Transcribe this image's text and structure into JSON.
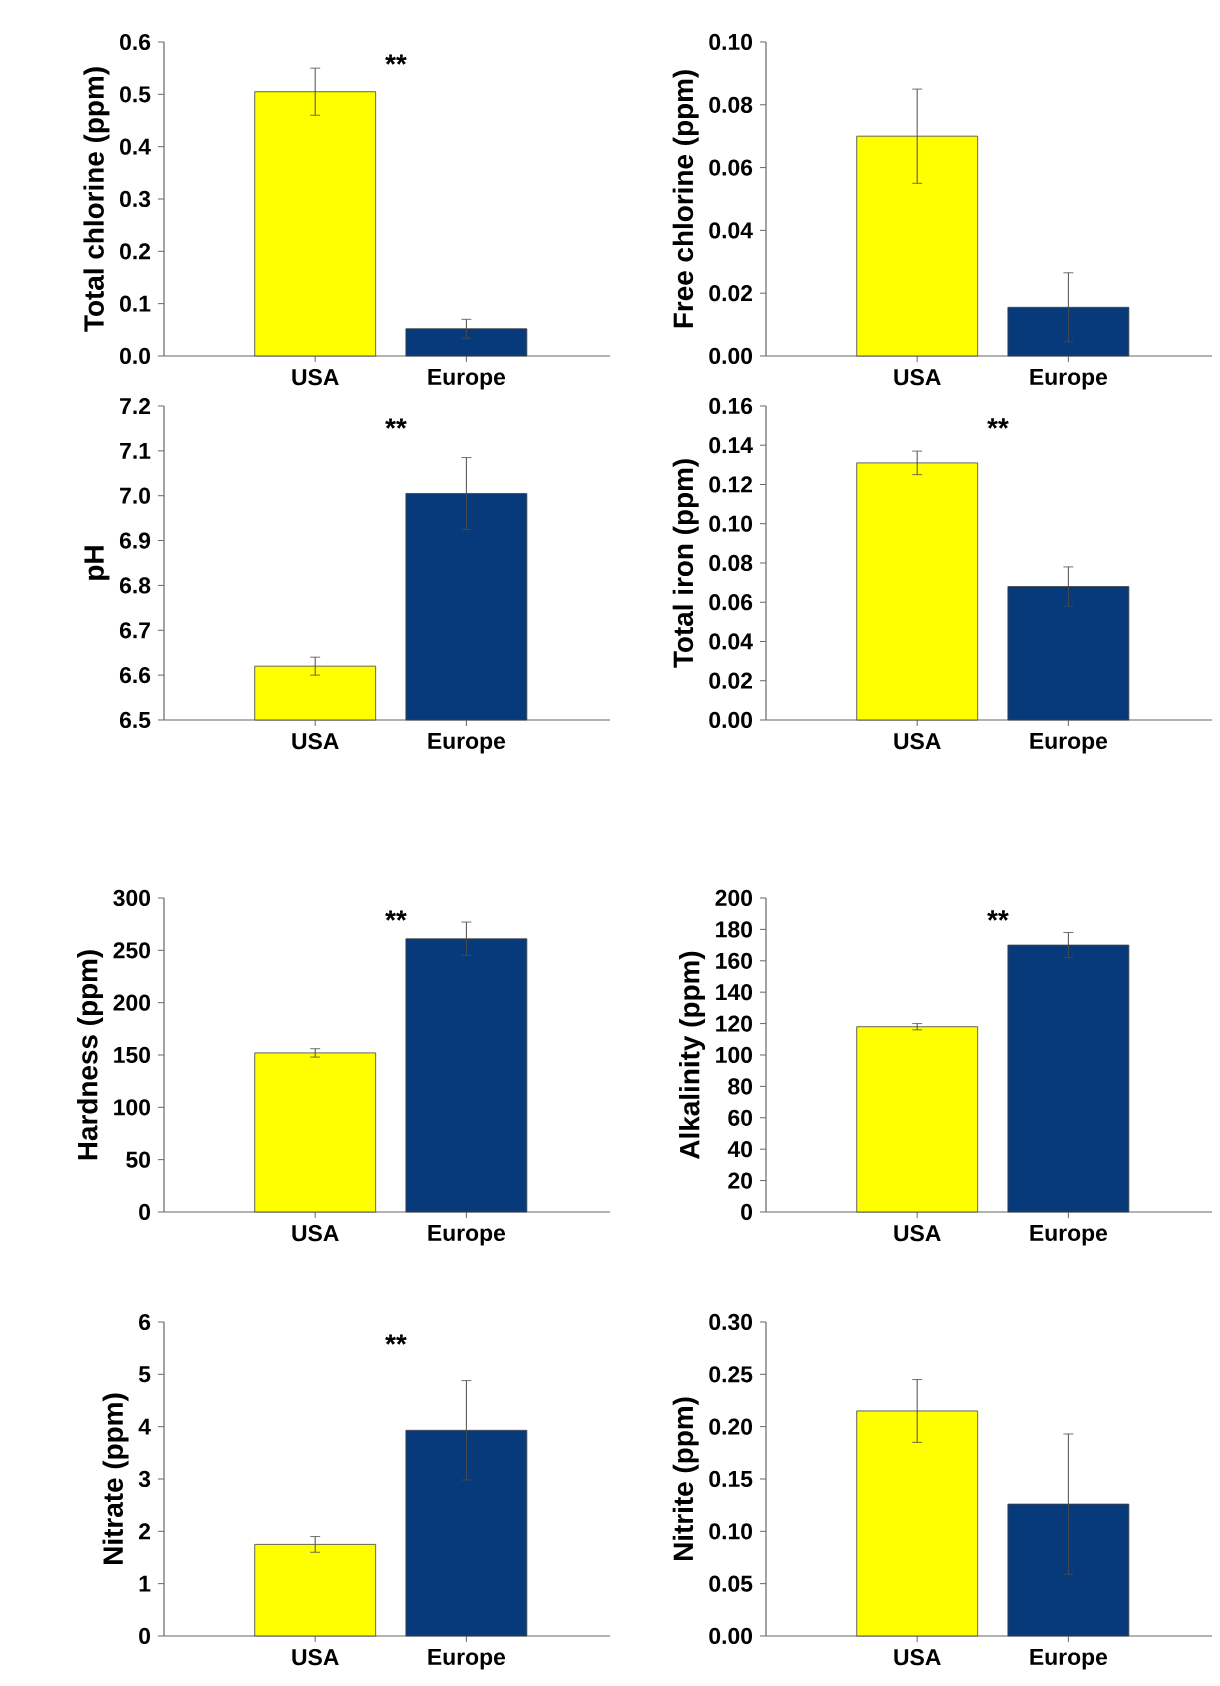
{
  "chart_data": [
    {
      "type": "bar",
      "ylabel": "Total chlorine (ppm)",
      "categories": [
        "USA",
        "Europe"
      ],
      "values": [
        0.505,
        0.052
      ],
      "colors": [
        "#ffff00",
        "#063a7a"
      ],
      "errors": [
        0.045,
        0.018
      ],
      "ylim": [
        0,
        0.6
      ],
      "yticks": [
        {
          "value": 0,
          "label": "0.0"
        },
        0.1,
        0.2,
        0.3,
        0.4,
        0.5,
        0.6
      ],
      "annotations": [
        "**"
      ]
    },
    {
      "type": "bar",
      "ylabel": "Free chlorine (ppm)",
      "categories": [
        "USA",
        "Europe"
      ],
      "values": [
        0.07,
        0.0155
      ],
      "colors": [
        "#ffff00",
        "#063a7a"
      ],
      "errors": [
        0.015,
        0.011
      ],
      "ylim": [
        0,
        0.1
      ],
      "yticks": [
        {
          "value": 0,
          "label": "0.00"
        },
        {
          "value": 0.02,
          "label": "0.02"
        },
        {
          "value": 0.04,
          "label": "0.04"
        },
        {
          "value": 0.06,
          "label": "0.06"
        },
        {
          "value": 0.08,
          "label": "0.08"
        },
        {
          "value": 0.1,
          "label": "0.10"
        }
      ]
    },
    {
      "type": "bar",
      "ylabel": "pH",
      "categories": [
        "USA",
        "Europe"
      ],
      "values": [
        6.62,
        7.005
      ],
      "colors": [
        "#ffff00",
        "#063a7a"
      ],
      "errors": [
        0.02,
        0.08
      ],
      "ylim": [
        6.5,
        7.2
      ],
      "yticks": [
        6.5,
        6.6,
        6.7,
        6.8,
        6.9,
        {
          "value": 7,
          "label": "7.0"
        },
        7.1,
        7.2
      ],
      "annotations": [
        "**"
      ]
    },
    {
      "type": "bar",
      "ylabel": "Total iron (ppm)",
      "categories": [
        "USA",
        "Europe"
      ],
      "values": [
        0.131,
        0.068
      ],
      "colors": [
        "#ffff00",
        "#063a7a"
      ],
      "errors": [
        0.006,
        0.01
      ],
      "ylim": [
        0,
        0.16
      ],
      "yticks": [
        {
          "value": 0,
          "label": "0.00"
        },
        {
          "value": 0.02,
          "label": "0.02"
        },
        {
          "value": 0.04,
          "label": "0.04"
        },
        {
          "value": 0.06,
          "label": "0.06"
        },
        {
          "value": 0.08,
          "label": "0.08"
        },
        {
          "value": 0.1,
          "label": "0.10"
        },
        {
          "value": 0.12,
          "label": "0.12"
        },
        {
          "value": 0.14,
          "label": "0.14"
        },
        {
          "value": 0.16,
          "label": "0.16"
        }
      ],
      "annotations": [
        "**"
      ]
    },
    {
      "type": "bar",
      "ylabel": "Hardness (ppm)",
      "categories": [
        "USA",
        "Europe"
      ],
      "values": [
        152,
        261
      ],
      "colors": [
        "#ffff00",
        "#063a7a"
      ],
      "errors": [
        4,
        16
      ],
      "ylim": [
        0,
        300
      ],
      "yticks": [
        0,
        50,
        100,
        150,
        200,
        250,
        300
      ],
      "annotations": [
        "**"
      ]
    },
    {
      "type": "bar",
      "ylabel": "Alkalinity (ppm)",
      "categories": [
        "USA",
        "Europe"
      ],
      "values": [
        118,
        170
      ],
      "colors": [
        "#ffff00",
        "#063a7a"
      ],
      "errors": [
        2,
        8
      ],
      "ylim": [
        0,
        200
      ],
      "yticks": [
        0,
        20,
        40,
        60,
        80,
        100,
        120,
        140,
        160,
        180,
        200
      ],
      "annotations": [
        "**"
      ]
    },
    {
      "type": "bar",
      "ylabel": "Nitrate (ppm)",
      "categories": [
        "USA",
        "Europe"
      ],
      "values": [
        1.75,
        3.93
      ],
      "colors": [
        "#ffff00",
        "#063a7a"
      ],
      "errors": [
        0.15,
        0.95
      ],
      "ylim": [
        0,
        6
      ],
      "yticks": [
        0,
        1,
        2,
        3,
        4,
        5,
        6
      ],
      "annotations": [
        "**"
      ]
    },
    {
      "type": "bar",
      "ylabel": "Nitrite (ppm)",
      "categories": [
        "USA",
        "Europe"
      ],
      "values": [
        0.215,
        0.126
      ],
      "colors": [
        "#ffff00",
        "#063a7a"
      ],
      "errors": [
        0.03,
        0.067
      ],
      "ylim": [
        0,
        0.3
      ],
      "yticks": [
        {
          "value": 0,
          "label": "0.00"
        },
        {
          "value": 0.05,
          "label": "0.05"
        },
        {
          "value": 0.1,
          "label": "0.10"
        },
        {
          "value": 0.15,
          "label": "0.15"
        },
        {
          "value": 0.2,
          "label": "0.20"
        },
        {
          "value": 0.25,
          "label": "0.25"
        },
        {
          "value": 0.3,
          "label": "0.30"
        }
      ]
    }
  ]
}
